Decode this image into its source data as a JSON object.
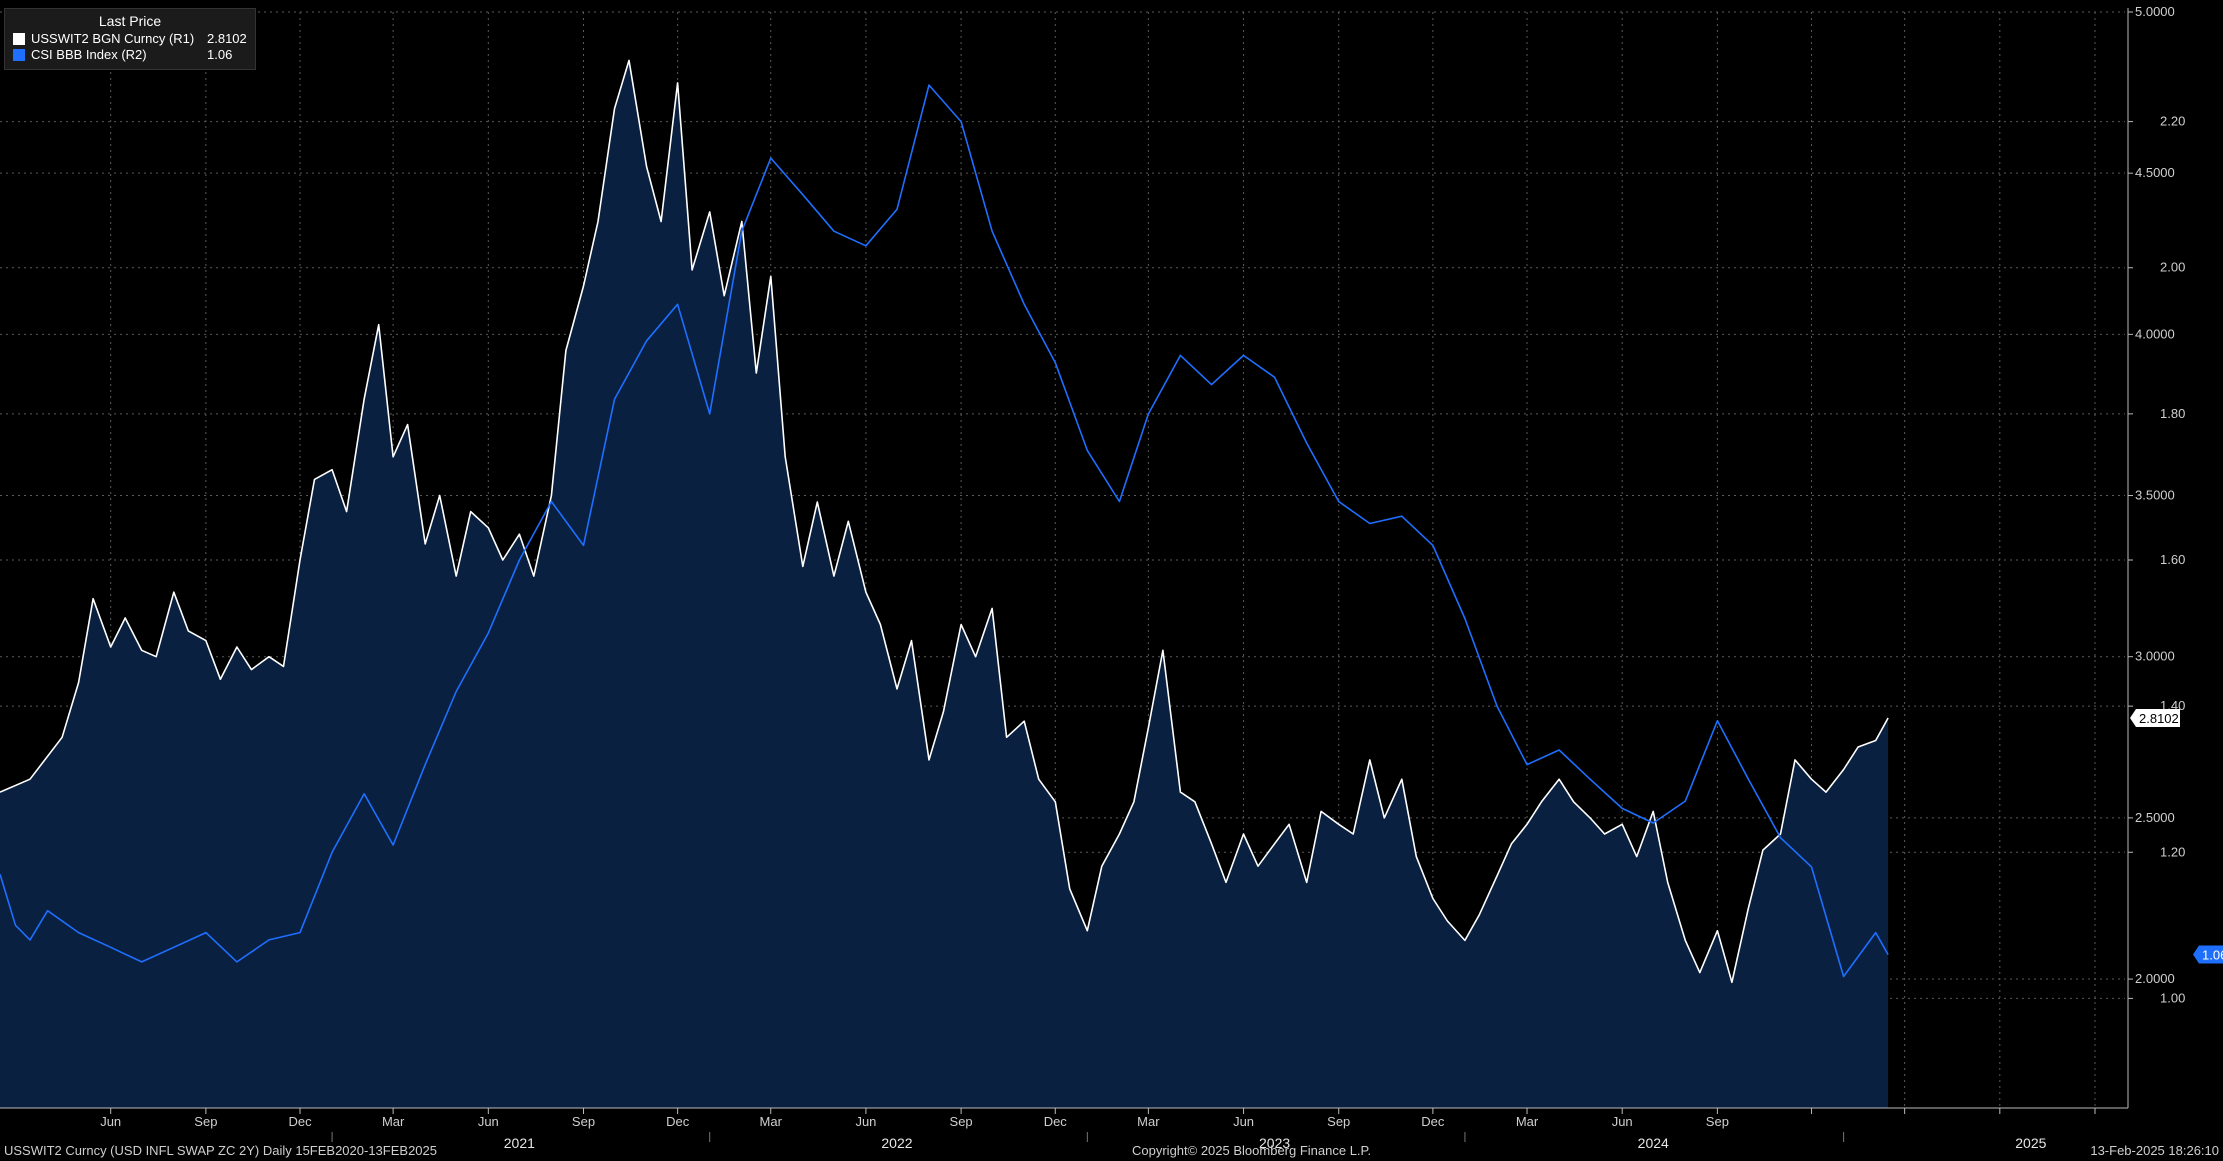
{
  "legend": {
    "header": "Last Price",
    "items": [
      {
        "label": "USSWIT2 BGN Curncy  (R1)",
        "value": "2.8102",
        "color": "#ffffff"
      },
      {
        "label": "CSI BBB Index  (R2)",
        "value": "1.06",
        "color": "#1f6fff"
      }
    ]
  },
  "footer": {
    "left": "USSWIT2 Curncy (USD INFL SWAP ZC 2Y)  Daily 15FEB2020-13FEB2025",
    "center": "Copyright© 2025 Bloomberg Finance L.P.",
    "right": "13-Feb-2025 18:26:10"
  },
  "chart_data": {
    "type": "line",
    "x_range": [
      "2020-02-15",
      "2025-09-30"
    ],
    "x_tick_labels": [
      "Jun",
      "Sep",
      "Dec",
      "Mar",
      "Jun",
      "Sep",
      "Dec",
      "Mar",
      "Jun",
      "Sep",
      "Dec",
      "Mar",
      "Jun",
      "Sep",
      "Dec",
      "Mar",
      "Jun",
      "Sep"
    ],
    "x_year_labels": [
      "2021",
      "2022",
      "2023",
      "2024",
      "2025"
    ],
    "axes": {
      "R1": {
        "min": 1.6,
        "max": 5.0,
        "ticks": [
          "2.0000",
          "2.5000",
          "3.0000",
          "3.5000",
          "4.0000",
          "4.5000",
          "5.0000"
        ]
      },
      "R2": {
        "min": 0.85,
        "max": 2.35,
        "ticks": [
          "1.00",
          "1.20",
          "1.40",
          "1.60",
          "1.80",
          "2.00",
          "2.20"
        ]
      }
    },
    "grid": true,
    "legend_position": "top-left",
    "series": [
      {
        "name": "USSWIT2 BGN Curncy  (R1)",
        "axis": "R1",
        "style": "area",
        "color": "#ffffff",
        "fill": "#0a2040",
        "last_value": "2.8102",
        "points": [
          [
            "2020-02-15",
            2.58
          ],
          [
            "2020-03-15",
            2.62
          ],
          [
            "2020-04-15",
            2.75
          ],
          [
            "2020-05-01",
            2.92
          ],
          [
            "2020-05-15",
            3.18
          ],
          [
            "2020-06-01",
            3.03
          ],
          [
            "2020-06-15",
            3.12
          ],
          [
            "2020-07-01",
            3.02
          ],
          [
            "2020-07-15",
            3.0
          ],
          [
            "2020-08-01",
            3.2
          ],
          [
            "2020-08-15",
            3.08
          ],
          [
            "2020-09-01",
            3.05
          ],
          [
            "2020-09-15",
            2.93
          ],
          [
            "2020-10-01",
            3.03
          ],
          [
            "2020-10-15",
            2.96
          ],
          [
            "2020-11-01",
            3.0
          ],
          [
            "2020-11-15",
            2.97
          ],
          [
            "2020-12-01",
            3.3
          ],
          [
            "2020-12-15",
            3.55
          ],
          [
            "2021-01-01",
            3.58
          ],
          [
            "2021-01-15",
            3.45
          ],
          [
            "2021-02-01",
            3.8
          ],
          [
            "2021-02-15",
            4.03
          ],
          [
            "2021-03-01",
            3.62
          ],
          [
            "2021-03-15",
            3.72
          ],
          [
            "2021-04-01",
            3.35
          ],
          [
            "2021-04-15",
            3.5
          ],
          [
            "2021-05-01",
            3.25
          ],
          [
            "2021-05-15",
            3.45
          ],
          [
            "2021-06-01",
            3.4
          ],
          [
            "2021-06-15",
            3.3
          ],
          [
            "2021-07-01",
            3.38
          ],
          [
            "2021-07-15",
            3.25
          ],
          [
            "2021-08-01",
            3.5
          ],
          [
            "2021-08-15",
            3.95
          ],
          [
            "2021-09-01",
            4.15
          ],
          [
            "2021-09-15",
            4.35
          ],
          [
            "2021-10-01",
            4.7
          ],
          [
            "2021-10-15",
            4.85
          ],
          [
            "2021-11-01",
            4.52
          ],
          [
            "2021-11-15",
            4.35
          ],
          [
            "2021-12-01",
            4.78
          ],
          [
            "2021-12-15",
            4.2
          ],
          [
            "2022-01-01",
            4.38
          ],
          [
            "2022-01-15",
            4.12
          ],
          [
            "2022-02-01",
            4.35
          ],
          [
            "2022-02-15",
            3.88
          ],
          [
            "2022-03-01",
            4.18
          ],
          [
            "2022-03-15",
            3.62
          ],
          [
            "2022-04-01",
            3.28
          ],
          [
            "2022-04-15",
            3.48
          ],
          [
            "2022-05-01",
            3.25
          ],
          [
            "2022-05-15",
            3.42
          ],
          [
            "2022-06-01",
            3.2
          ],
          [
            "2022-06-15",
            3.1
          ],
          [
            "2022-07-01",
            2.9
          ],
          [
            "2022-07-15",
            3.05
          ],
          [
            "2022-08-01",
            2.68
          ],
          [
            "2022-08-15",
            2.83
          ],
          [
            "2022-09-01",
            3.1
          ],
          [
            "2022-09-15",
            3.0
          ],
          [
            "2022-10-01",
            3.15
          ],
          [
            "2022-10-15",
            2.75
          ],
          [
            "2022-11-01",
            2.8
          ],
          [
            "2022-11-15",
            2.62
          ],
          [
            "2022-12-01",
            2.55
          ],
          [
            "2022-12-15",
            2.28
          ],
          [
            "2023-01-01",
            2.15
          ],
          [
            "2023-01-15",
            2.35
          ],
          [
            "2023-02-01",
            2.45
          ],
          [
            "2023-02-15",
            2.55
          ],
          [
            "2023-03-01",
            2.78
          ],
          [
            "2023-03-15",
            3.02
          ],
          [
            "2023-04-01",
            2.58
          ],
          [
            "2023-04-15",
            2.55
          ],
          [
            "2023-05-01",
            2.42
          ],
          [
            "2023-05-15",
            2.3
          ],
          [
            "2023-06-01",
            2.45
          ],
          [
            "2023-06-15",
            2.35
          ],
          [
            "2023-07-01",
            2.42
          ],
          [
            "2023-07-15",
            2.48
          ],
          [
            "2023-08-01",
            2.3
          ],
          [
            "2023-08-15",
            2.52
          ],
          [
            "2023-09-01",
            2.48
          ],
          [
            "2023-09-15",
            2.45
          ],
          [
            "2023-10-01",
            2.68
          ],
          [
            "2023-10-15",
            2.5
          ],
          [
            "2023-11-01",
            2.62
          ],
          [
            "2023-11-15",
            2.38
          ],
          [
            "2023-12-01",
            2.25
          ],
          [
            "2023-12-15",
            2.18
          ],
          [
            "2024-01-01",
            2.12
          ],
          [
            "2024-01-15",
            2.2
          ],
          [
            "2024-02-01",
            2.32
          ],
          [
            "2024-02-15",
            2.42
          ],
          [
            "2024-03-01",
            2.48
          ],
          [
            "2024-03-15",
            2.55
          ],
          [
            "2024-04-01",
            2.62
          ],
          [
            "2024-04-15",
            2.55
          ],
          [
            "2024-05-01",
            2.5
          ],
          [
            "2024-05-15",
            2.45
          ],
          [
            "2024-06-01",
            2.48
          ],
          [
            "2024-06-15",
            2.38
          ],
          [
            "2024-07-01",
            2.52
          ],
          [
            "2024-07-15",
            2.3
          ],
          [
            "2024-08-01",
            2.12
          ],
          [
            "2024-08-15",
            2.02
          ],
          [
            "2024-09-01",
            2.15
          ],
          [
            "2024-09-15",
            1.99
          ],
          [
            "2024-10-01",
            2.22
          ],
          [
            "2024-10-15",
            2.4
          ],
          [
            "2024-11-01",
            2.45
          ],
          [
            "2024-11-15",
            2.68
          ],
          [
            "2024-12-01",
            2.62
          ],
          [
            "2024-12-15",
            2.58
          ],
          [
            "2025-01-01",
            2.65
          ],
          [
            "2025-01-15",
            2.72
          ],
          [
            "2025-02-01",
            2.74
          ],
          [
            "2025-02-13",
            2.81
          ]
        ]
      },
      {
        "name": "CSI BBB Index  (R2)",
        "axis": "R2",
        "style": "line",
        "color": "#1f6fff",
        "last_value": "1.06",
        "points": [
          [
            "2020-02-15",
            1.17
          ],
          [
            "2020-03-01",
            1.1
          ],
          [
            "2020-03-15",
            1.08
          ],
          [
            "2020-04-01",
            1.12
          ],
          [
            "2020-05-01",
            1.09
          ],
          [
            "2020-06-01",
            1.07
          ],
          [
            "2020-07-01",
            1.05
          ],
          [
            "2020-08-01",
            1.07
          ],
          [
            "2020-09-01",
            1.09
          ],
          [
            "2020-10-01",
            1.05
          ],
          [
            "2020-11-01",
            1.08
          ],
          [
            "2020-12-01",
            1.09
          ],
          [
            "2021-01-01",
            1.2
          ],
          [
            "2021-02-01",
            1.28
          ],
          [
            "2021-03-01",
            1.21
          ],
          [
            "2021-04-01",
            1.32
          ],
          [
            "2021-05-01",
            1.42
          ],
          [
            "2021-06-01",
            1.5
          ],
          [
            "2021-07-01",
            1.6
          ],
          [
            "2021-08-01",
            1.68
          ],
          [
            "2021-09-01",
            1.62
          ],
          [
            "2021-10-01",
            1.82
          ],
          [
            "2021-11-01",
            1.9
          ],
          [
            "2021-12-01",
            1.95
          ],
          [
            "2022-01-01",
            1.8
          ],
          [
            "2022-02-01",
            2.05
          ],
          [
            "2022-03-01",
            2.15
          ],
          [
            "2022-04-01",
            2.1
          ],
          [
            "2022-05-01",
            2.05
          ],
          [
            "2022-06-01",
            2.03
          ],
          [
            "2022-07-01",
            2.08
          ],
          [
            "2022-08-01",
            2.25
          ],
          [
            "2022-09-01",
            2.2
          ],
          [
            "2022-10-01",
            2.05
          ],
          [
            "2022-11-01",
            1.95
          ],
          [
            "2022-12-01",
            1.87
          ],
          [
            "2023-01-01",
            1.75
          ],
          [
            "2023-02-01",
            1.68
          ],
          [
            "2023-03-01",
            1.8
          ],
          [
            "2023-04-01",
            1.88
          ],
          [
            "2023-05-01",
            1.84
          ],
          [
            "2023-06-01",
            1.88
          ],
          [
            "2023-07-01",
            1.85
          ],
          [
            "2023-08-01",
            1.76
          ],
          [
            "2023-09-01",
            1.68
          ],
          [
            "2023-10-01",
            1.65
          ],
          [
            "2023-11-01",
            1.66
          ],
          [
            "2023-12-01",
            1.62
          ],
          [
            "2024-01-01",
            1.52
          ],
          [
            "2024-02-01",
            1.4
          ],
          [
            "2024-03-01",
            1.32
          ],
          [
            "2024-04-01",
            1.34
          ],
          [
            "2024-05-01",
            1.3
          ],
          [
            "2024-06-01",
            1.26
          ],
          [
            "2024-07-01",
            1.24
          ],
          [
            "2024-08-01",
            1.27
          ],
          [
            "2024-09-01",
            1.38
          ],
          [
            "2024-10-01",
            1.3
          ],
          [
            "2024-11-01",
            1.22
          ],
          [
            "2024-12-01",
            1.18
          ],
          [
            "2025-01-01",
            1.03
          ],
          [
            "2025-02-01",
            1.09
          ],
          [
            "2025-02-13",
            1.06
          ]
        ]
      }
    ]
  }
}
